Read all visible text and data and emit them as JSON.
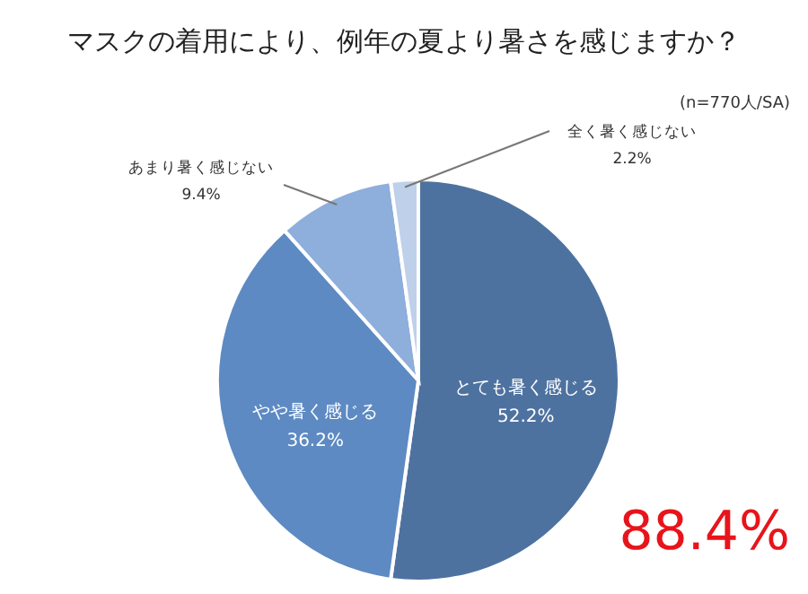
{
  "chart_data": {
    "type": "pie",
    "title": "マスクの着用により、例年の夏より暑さを感じますか？",
    "categories": [
      "とても暑く感じる",
      "やや暑く感じる",
      "あまり暑く感じない",
      "全く暑く感じない"
    ],
    "values": [
      52.2,
      36.2,
      9.4,
      2.2
    ],
    "value_labels": [
      "52.2%",
      "36.2%",
      "9.4%",
      "2.2%"
    ],
    "colors": [
      "#4e72a0",
      "#5d8ac3",
      "#8eaedb",
      "#bfd0ea"
    ],
    "legend": false,
    "annotations": [
      "(n=770人/SA)",
      "88.4%"
    ]
  }
}
